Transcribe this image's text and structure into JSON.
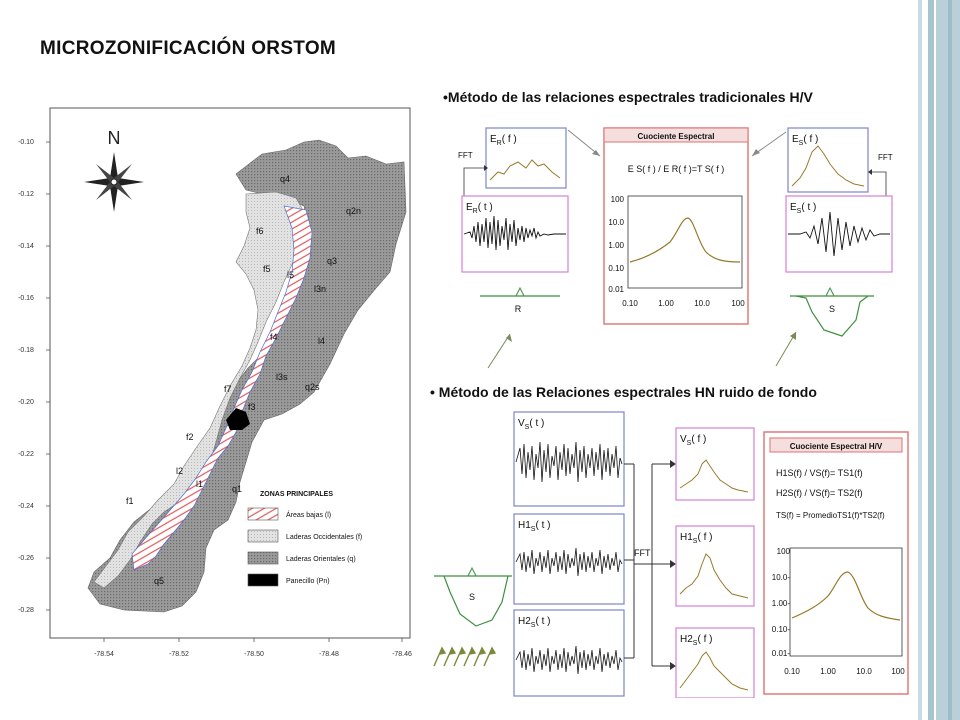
{
  "slide": {
    "title": "MICROZONIFICACIÓN ORSTOM",
    "bullet1": "•Método de las relaciones espectrales tradicionales H/V",
    "bullet2": "• Método de las Relaciones espectrales HN ruido de fondo"
  },
  "map": {
    "north": "N",
    "y_ticks": [
      "-0.10",
      "-0.12",
      "-0.14",
      "-0.16",
      "-0.18",
      "-0.20",
      "-0.22",
      "-0.24",
      "-0.26",
      "-0.28"
    ],
    "x_ticks": [
      "-78.54",
      "-78.52",
      "-78.50",
      "-78.48",
      "-78.46"
    ],
    "zones": {
      "q4": "q4",
      "q2n": "q2n",
      "q3": "q3",
      "f6": "f6",
      "f5": "f5",
      "l5": "l5",
      "l3n": "l3n",
      "f4": "f4",
      "l4": "l4",
      "l3s": "l3s",
      "f7": "f7",
      "q2s": "q2s",
      "f3": "f3",
      "f2": "f2",
      "l2": "l2",
      "l1": "l1",
      "q1": "q1",
      "f1": "f1",
      "q5": "q5"
    },
    "legend": {
      "title": "ZONAS PRINCIPALES",
      "items": [
        {
          "label": "Áreas bajas (l)",
          "kind": "hatch"
        },
        {
          "label": "Laderas Occidentales (f)",
          "kind": "light"
        },
        {
          "label": "Laderas Orientales (q)",
          "kind": "dark"
        },
        {
          "label": "Panecillo (Pn)",
          "kind": "black"
        }
      ]
    }
  },
  "diagram1": {
    "er_f": "E",
    "er_f_sub": "R",
    "er_f_arg": "( f )",
    "er_t": "E",
    "er_t_sub": "R",
    "er_t_arg": "( t )",
    "es_f": "E",
    "es_f_sub": "S",
    "es_f_arg": "( f )",
    "es_t": "E",
    "es_t_sub": "S",
    "es_t_arg": "( t )",
    "fft_left": "FFT",
    "fft_right": "FFT",
    "cociente": "Cuociente Espectral",
    "formula": "E S( f ) / E R( f )=T S( f )",
    "y_ticks": [
      "100",
      "10.0",
      "1.00",
      "0.10",
      "0.01"
    ],
    "x_ticks": [
      "0.10",
      "1.00",
      "10.0",
      "100"
    ],
    "station_r": "R",
    "station_s": "S"
  },
  "diagram2": {
    "vs_t": "V",
    "vs_t_sub": "S",
    "vs_t_arg": "( t )",
    "h1_t": "H1",
    "h1_t_sub": "S",
    "h1_t_arg": "( t )",
    "h2_t": "H2",
    "h2_t_sub": "S",
    "h2_t_arg": "( t )",
    "vs_f": "V",
    "vs_f_sub": "S",
    "vs_f_arg": "( f )",
    "h1_f": "H1",
    "h1_f_sub": "S",
    "h1_f_arg": "( f )",
    "h2_f": "H2",
    "h2_f_sub": "S",
    "h2_f_arg": "( f )",
    "fft": "FFT",
    "station_s": "S",
    "cociente": "Cuociente Espectral H/V",
    "formula1": "H1S(f) / VS(f)= TS1(f)",
    "formula2": "H2S(f) / VS(f)= TS2(f)",
    "formula3": "TS(f) = PromedioTS1(f)*TS2(f)",
    "y_ticks": [
      "100",
      "10.0-",
      "1.00-",
      "0.10-",
      "0.01-"
    ],
    "x_ticks": [
      "0.10",
      "1.00",
      "10.0",
      "100"
    ]
  },
  "colors": {
    "blue_frame": "#7b86c8",
    "magenta_frame": "#d57fd9",
    "red_frame": "#e07070",
    "curve": "#9a7a2a",
    "green_station": "#3f8f3f",
    "side_band": "#a9c4cf"
  }
}
